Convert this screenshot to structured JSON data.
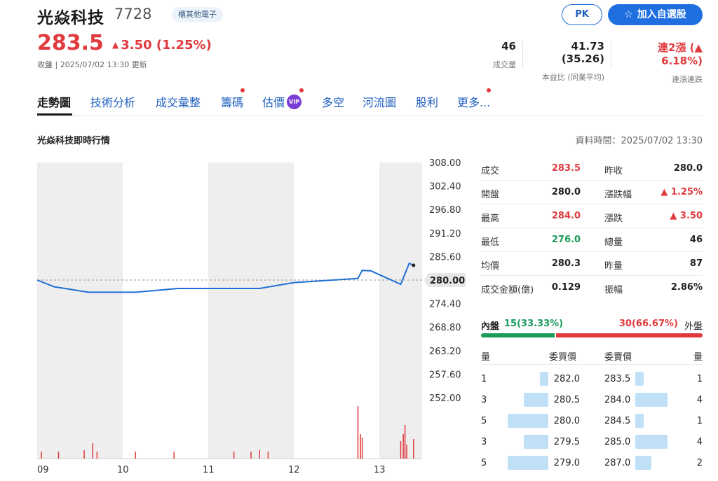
{
  "header": {
    "name": "光焱科技",
    "code": "7728",
    "category": "櫃其他電子",
    "pk_label": "PK",
    "watch_label": "加入自選股",
    "price": "283.5",
    "change": "3.50 (1.25%)",
    "closing_text": "收盤 | 2025/07/02 13:30 更新",
    "stats": [
      {
        "value": "46",
        "label": "成交量"
      },
      {
        "value": "41.73 (35.26)",
        "label": "本益比 (同業平均)"
      },
      {
        "value": "連2漲 (▲ 6.18%)",
        "label": "連漲連跌"
      }
    ]
  },
  "tabs": [
    {
      "label": "走勢圖",
      "active": true
    },
    {
      "label": "技術分析"
    },
    {
      "label": "成交彙整"
    },
    {
      "label": "籌碼",
      "dot": true
    },
    {
      "label": "估價",
      "vip": "VIP",
      "dot": true
    },
    {
      "label": "多空"
    },
    {
      "label": "河流圖"
    },
    {
      "label": "股利"
    },
    {
      "label": "更多...",
      "dot": true
    }
  ],
  "section": {
    "title": "光焱科技即時行情",
    "data_time": "資料時間：2025/07/02 13:30"
  },
  "quote": {
    "left": [
      {
        "label": "成交",
        "value": "283.5",
        "color": "red"
      },
      {
        "label": "開盤",
        "value": "280.0"
      },
      {
        "label": "最高",
        "value": "284.0",
        "color": "red"
      },
      {
        "label": "最低",
        "value": "276.0",
        "color": "green"
      },
      {
        "label": "均價",
        "value": "280.3"
      },
      {
        "label": "成交金額(億)",
        "value": "0.129"
      }
    ],
    "right": [
      {
        "label": "昨收",
        "value": "280.0"
      },
      {
        "label": "漲跌幅",
        "value": "▲ 1.25%",
        "color": "red"
      },
      {
        "label": "漲跌",
        "value": "▲ 3.50",
        "color": "red"
      },
      {
        "label": "總量",
        "value": "46"
      },
      {
        "label": "昨量",
        "value": "87"
      },
      {
        "label": "振幅",
        "value": "2.86%"
      }
    ]
  },
  "inout": {
    "inner_label": "內盤",
    "inner_value": "15(33.33%)",
    "outer_value": "30(66.67%)",
    "outer_label": "外盤",
    "inner_ratio": 0.3333
  },
  "order_book": {
    "headers": {
      "bid_qty": "量",
      "bid_price": "委買價",
      "ask_price": "委賣價",
      "ask_qty": "量"
    },
    "bids": [
      {
        "qty": "1",
        "price": "282.0",
        "q": 1
      },
      {
        "qty": "3",
        "price": "280.5",
        "q": 3
      },
      {
        "qty": "5",
        "price": "280.0",
        "q": 5
      },
      {
        "qty": "3",
        "price": "279.5",
        "q": 3
      },
      {
        "qty": "5",
        "price": "279.0",
        "q": 5
      }
    ],
    "asks": [
      {
        "price": "283.5",
        "qty": "1",
        "q": 1
      },
      {
        "price": "284.0",
        "qty": "4",
        "q": 4
      },
      {
        "price": "284.5",
        "qty": "1",
        "q": 1
      },
      {
        "price": "285.0",
        "qty": "4",
        "q": 4
      },
      {
        "price": "287.0",
        "qty": "2",
        "q": 2
      }
    ]
  },
  "chart_data": {
    "type": "line",
    "y_ticks": [
      "308.00",
      "302.40",
      "296.80",
      "291.20",
      "285.60",
      "280.00",
      "274.40",
      "268.80",
      "263.20",
      "257.60",
      "252.00"
    ],
    "x_ticks": [
      "09",
      "10",
      "11",
      "12",
      "13"
    ],
    "ylim": [
      252.0,
      308.0
    ],
    "reference": 280.0,
    "reference_label": "280.00",
    "x_hours": [
      9.0,
      9.2,
      9.6,
      10.15,
      10.65,
      11.6,
      12.0,
      12.75,
      12.8,
      12.9,
      13.25,
      13.35,
      13.4
    ],
    "y_values": [
      280.0,
      278.4,
      277.1,
      277.1,
      278.0,
      278.0,
      279.4,
      280.4,
      282.3,
      282.2,
      279.0,
      284.0,
      283.5
    ],
    "colors": {
      "line": "#1f6fd6",
      "volume": "#e03a3e",
      "shade": "#eeeeee",
      "ref": "#999999"
    }
  }
}
